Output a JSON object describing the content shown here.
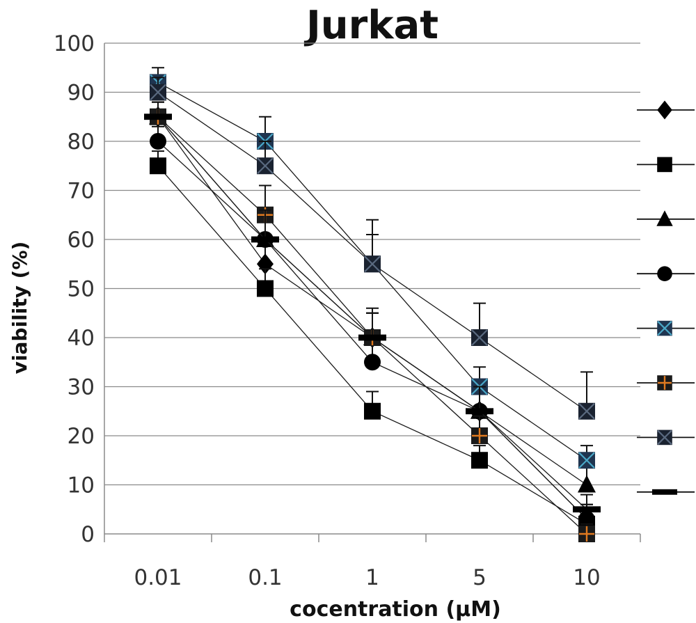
{
  "chart_data": {
    "type": "line",
    "title": "Jurkat",
    "xlabel": "cocentration (µM)",
    "ylabel": "viability (%)",
    "categories": [
      "0.01",
      "0.1",
      "1",
      "5",
      "10"
    ],
    "ylim": [
      0,
      100
    ],
    "yticks": [
      "0",
      "10",
      "20",
      "30",
      "40",
      "50",
      "60",
      "70",
      "80",
      "90",
      "100"
    ],
    "grid": true,
    "legend_position": "right",
    "series": [
      {
        "marker": "diamond",
        "color": "#000000",
        "accent": "#000000",
        "values": [
          85,
          55,
          40,
          25,
          3
        ],
        "error": [
          3,
          4,
          5,
          4,
          3
        ]
      },
      {
        "marker": "square",
        "color": "#000000",
        "accent": "#000000",
        "values": [
          75,
          50,
          25,
          15,
          2
        ],
        "error": [
          3,
          4,
          4,
          3,
          2
        ]
      },
      {
        "marker": "triangle",
        "color": "#000000",
        "accent": "#000000",
        "values": [
          85,
          60,
          40,
          25,
          10
        ],
        "error": [
          3,
          5,
          5,
          5,
          4
        ]
      },
      {
        "marker": "circle",
        "color": "#000000",
        "accent": "#000000",
        "values": [
          80,
          60,
          35,
          25,
          3
        ],
        "error": [
          3,
          5,
          5,
          5,
          3
        ]
      },
      {
        "marker": "x-square",
        "color": "#1f3550",
        "accent": "#4aa8c8",
        "values": [
          92,
          80,
          55,
          30,
          15
        ],
        "error": [
          3,
          5,
          6,
          4,
          3
        ]
      },
      {
        "marker": "plus-square",
        "color": "#1a1a1a",
        "accent": "#e07a20",
        "values": [
          85,
          65,
          40,
          20,
          0
        ],
        "error": [
          3,
          6,
          5,
          4,
          2
        ]
      },
      {
        "marker": "x-square-dark",
        "color": "#1a2230",
        "accent": "#5a6a80",
        "values": [
          90,
          75,
          55,
          40,
          25
        ],
        "error": [
          3,
          5,
          9,
          7,
          8
        ]
      },
      {
        "marker": "dash",
        "color": "#000000",
        "accent": "#000000",
        "values": [
          85,
          60,
          40,
          25,
          5
        ],
        "error": [
          3,
          6,
          6,
          5,
          3
        ]
      }
    ]
  }
}
